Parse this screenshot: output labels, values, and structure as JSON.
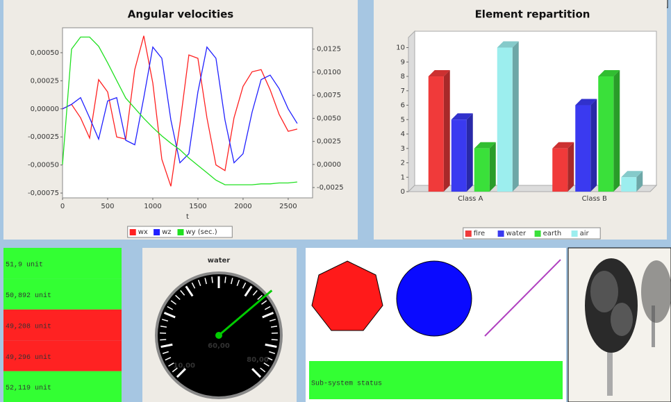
{
  "chart_data": [
    {
      "type": "line",
      "title": "Angular velocities",
      "x": [
        0,
        100,
        200,
        300,
        400,
        500,
        600,
        700,
        800,
        900,
        1000,
        1100,
        1200,
        1300,
        1400,
        1500,
        1600,
        1700,
        1800,
        1900,
        2000,
        2100,
        2200,
        2300,
        2400,
        2500,
        2600
      ],
      "xlim": [
        0,
        2770
      ],
      "xticks": [
        0,
        500,
        1000,
        1500,
        2000,
        2500
      ],
      "xlabel": "t",
      "ylim": [
        -0.000793,
        0.000722
      ],
      "yticks": [
        {
          "value": 0.0005,
          "label": "0,00050"
        },
        {
          "value": 0.00025,
          "label": "0,00025"
        },
        {
          "value": 0,
          "label": "0,00000"
        },
        {
          "value": -0.00025,
          "label": "-0,00025"
        },
        {
          "value": -0.0005,
          "label": "-0,00050"
        },
        {
          "value": -0.00075,
          "label": "-0,00075"
        }
      ],
      "y2lim": [
        -0.00362,
        0.01481
      ],
      "y2ticks": [
        {
          "value": 0.0125,
          "label": "0,0125"
        },
        {
          "value": 0.01,
          "label": "0,0100"
        },
        {
          "value": 0.0075,
          "label": "0,0075"
        },
        {
          "value": 0.005,
          "label": "0,0050"
        },
        {
          "value": 0.0025,
          "label": "0,0025"
        },
        {
          "value": 0,
          "label": "0,0000"
        },
        {
          "value": -0.0025,
          "label": "-0,0025"
        }
      ],
      "grid": false,
      "legend": "bottom",
      "series": [
        {
          "name": "wx",
          "color": "#ff2020",
          "values": [
            0,
            4e-05,
            -8e-05,
            -0.00026,
            0.00026,
            0.00015,
            -0.00025,
            -0.00027,
            0.00035,
            0.00065,
            0.00023,
            -0.00045,
            -0.00069,
            -0.00014,
            0.00048,
            0.00045,
            -8e-05,
            -0.0005,
            -0.00055,
            -8e-05,
            0.0002,
            0.00033,
            0.00035,
            0.00017,
            -5e-05,
            -0.0002,
            -0.00018
          ]
        },
        {
          "name": "wz",
          "color": "#2020ff",
          "values": [
            0,
            4e-05,
            0.0001,
            -8e-05,
            -0.00027,
            7e-05,
            0.0001,
            -0.00028,
            -0.00032,
            0.0001,
            0.00055,
            0.00045,
            -0.0001,
            -0.00048,
            -0.0004,
            0.00015,
            0.00055,
            0.00045,
            -0.0001,
            -0.00048,
            -0.0004,
            -3e-05,
            0.00026,
            0.0003,
            0.00018,
            0,
            -0.00013
          ]
        },
        {
          "name": "wy (sec.)",
          "color": "#20e020",
          "axis": "y2",
          "values": [
            0,
            0.0125,
            0.0138,
            0.0138,
            0.0128,
            0.011,
            0.0091,
            0.0072,
            0.0061,
            0.005,
            0.004,
            0.0031,
            0.0023,
            0.0016,
            0.0007,
            -0.0001,
            -0.0009,
            -0.0017,
            -0.0022,
            -0.0022,
            -0.0022,
            -0.0022,
            -0.0021,
            -0.0021,
            -0.002,
            -0.002,
            -0.0019
          ]
        }
      ]
    },
    {
      "type": "bar",
      "title": "Element repartition",
      "categories": [
        "Class A",
        "Class B"
      ],
      "ylim": [
        0,
        10.7
      ],
      "yticks": [
        0,
        1,
        2,
        3,
        4,
        5,
        6,
        7,
        8,
        9,
        10
      ],
      "grid": false,
      "legend": "bottom",
      "series": [
        {
          "name": "fire",
          "color": "#f03a3a",
          "values": [
            8,
            3
          ]
        },
        {
          "name": "water",
          "color": "#3a3af0",
          "values": [
            5,
            6
          ]
        },
        {
          "name": "earth",
          "color": "#3ae03a",
          "values": [
            3,
            8
          ]
        },
        {
          "name": "air",
          "color": "#9ceeee",
          "values": [
            10,
            1
          ]
        }
      ]
    }
  ],
  "value_list": [
    {
      "text": "51,9 unit",
      "color": "#33ff33"
    },
    {
      "text": "50,892 unit",
      "color": "#33ff33"
    },
    {
      "text": "49,208 unit",
      "color": "#ff2222"
    },
    {
      "text": "49,296 unit",
      "color": "#ff2222"
    },
    {
      "text": "52,119 unit",
      "color": "#33ff33"
    }
  ],
  "gauge": {
    "title": "water",
    "value": 60,
    "value_label": "60,00",
    "ticks": [
      {
        "value": 10,
        "label": "10,00"
      },
      {
        "value": 80,
        "label": "80,00"
      }
    ],
    "needle_color": "#00cc00",
    "label_color": "#ffff00"
  },
  "status": {
    "text": "Sub-system status",
    "color": "#33ff33"
  }
}
